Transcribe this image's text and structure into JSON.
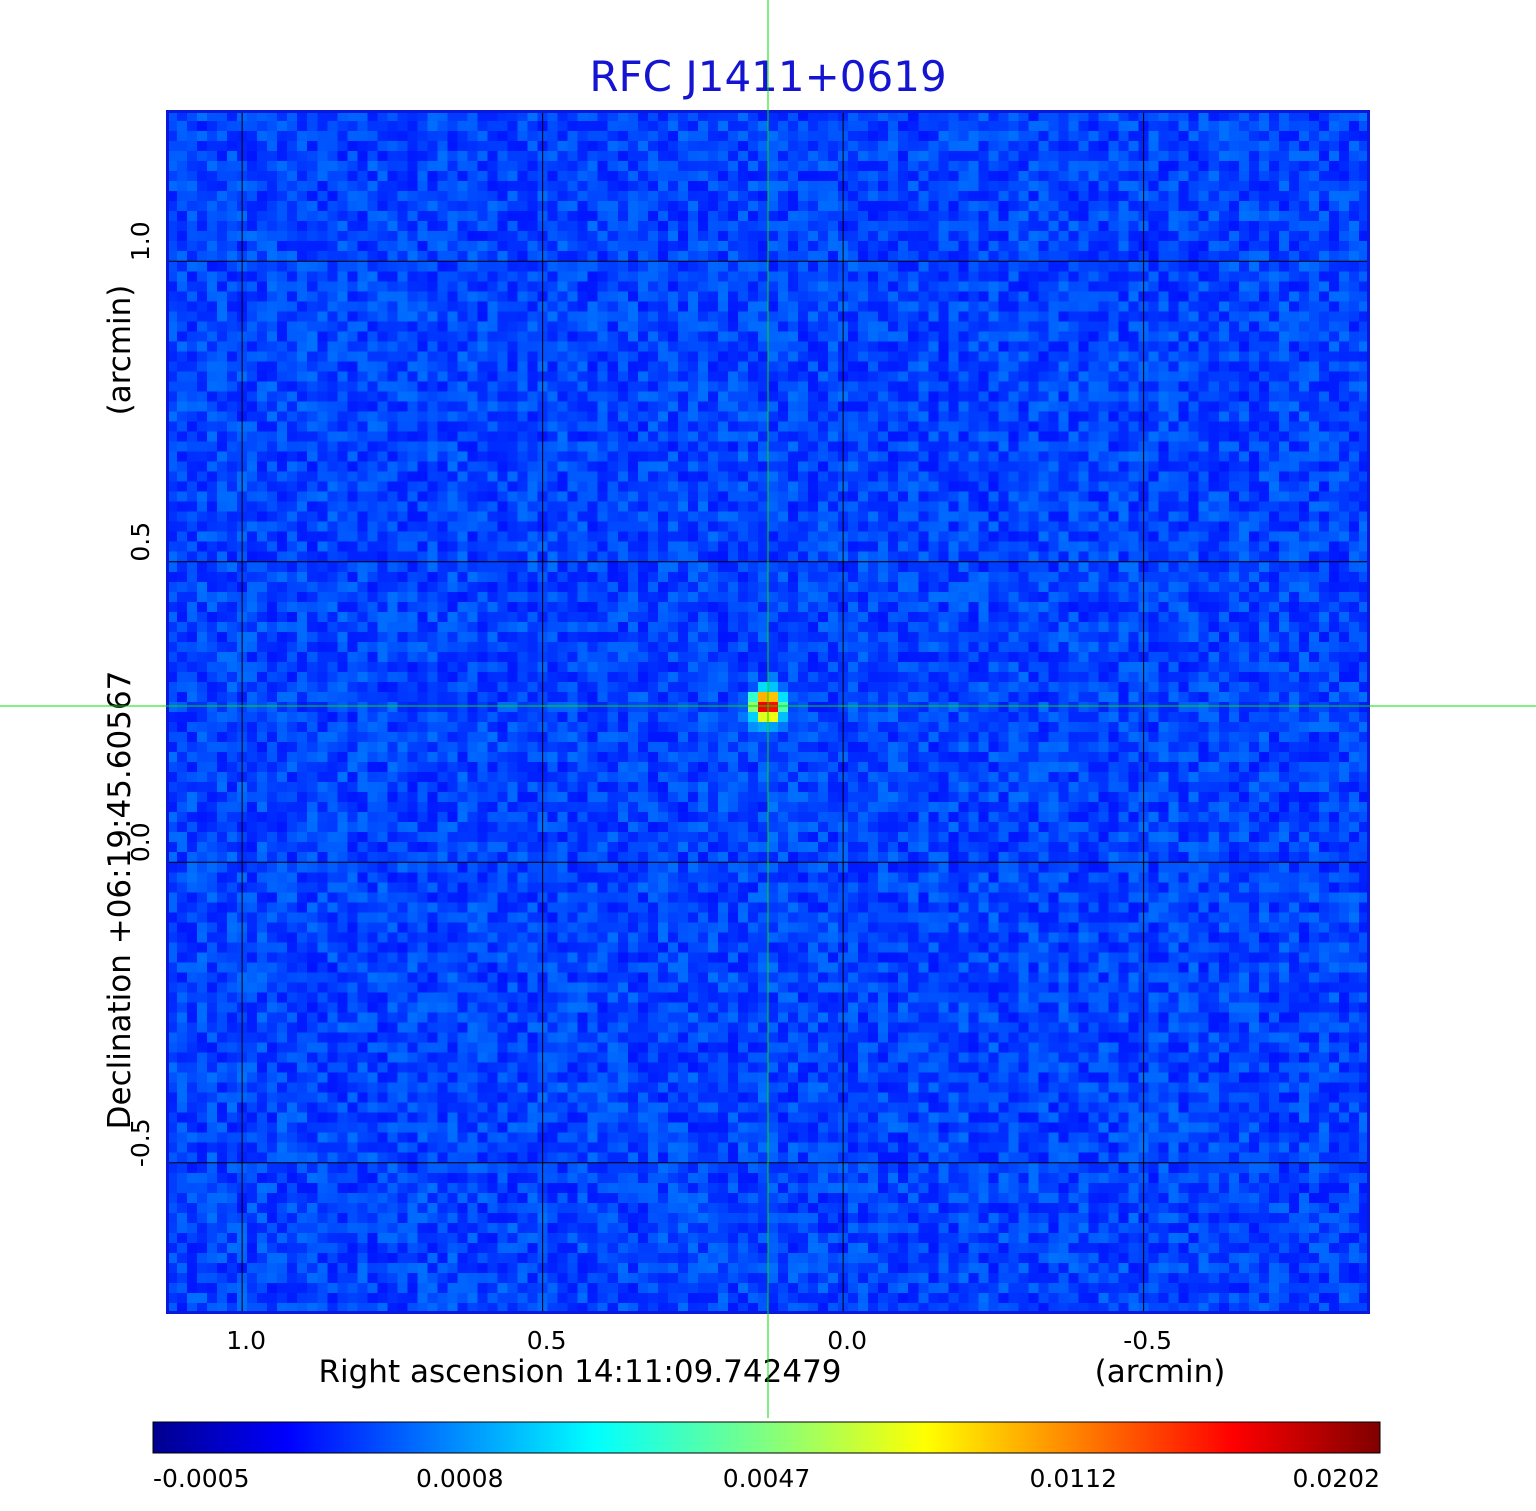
{
  "chart_data": {
    "type": "heatmap",
    "title": "RFC J1411+0619",
    "xlabel": "Right ascension  14:11:09.742479",
    "xunit": "(arcmin)",
    "ylabel": "Declination  +06:19:45.60567",
    "yunit": "(arcmin)",
    "xlim": [
      1.125,
      -0.875
    ],
    "ylim": [
      -0.75,
      1.25
    ],
    "x_ticks": [
      1.0,
      0.5,
      0.0,
      -0.5
    ],
    "x_tick_labels": [
      "1.0",
      "0.5",
      "0.0",
      "-0.5"
    ],
    "y_ticks": [
      1.0,
      0.5,
      0.0,
      -0.5
    ],
    "y_tick_labels": [
      "1.0",
      "0.5",
      "0.0",
      "-0.5"
    ],
    "grid": true,
    "colormap": "jet",
    "source": {
      "x": 0.125,
      "y": 0.26,
      "peak": 0.0202
    },
    "crosshair": {
      "x": 0.125,
      "y": 0.26,
      "color": "#00e000"
    },
    "colorbar": {
      "orientation": "horizontal",
      "location": "bottom",
      "tick_labels": [
        "-0.0005",
        "0.0008",
        "0.0047",
        "0.0112",
        "0.0202"
      ],
      "min": -0.0005,
      "max": 0.0202
    }
  }
}
